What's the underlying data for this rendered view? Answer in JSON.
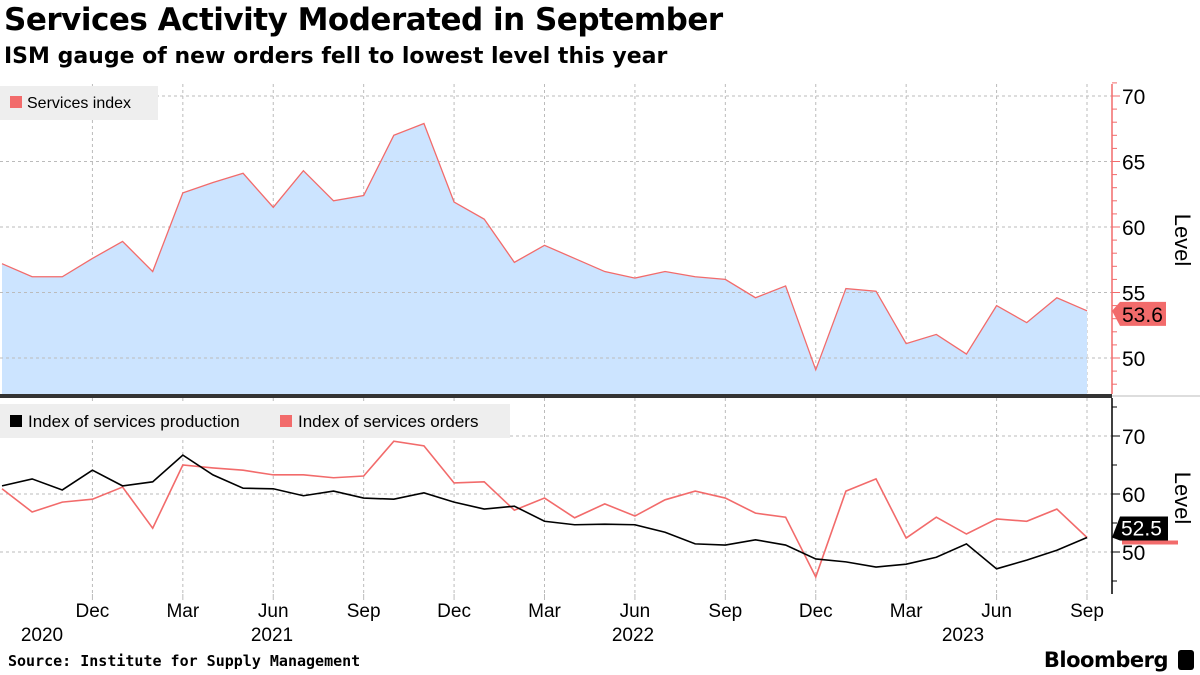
{
  "title": "Services Activity Moderated in September",
  "subtitle": "ISM gauge of new orders fell to lowest level this year",
  "source": "Source: Institute for Supply Management",
  "brand": "Bloomberg",
  "colors": {
    "area_fill": "#cce4ff",
    "red": "#f26b6b",
    "black": "#000000",
    "grid": "#bbbbbb"
  },
  "chart_data": [
    {
      "type": "area",
      "ylabel": "Level",
      "ylim": [
        47,
        71
      ],
      "yticks": [
        50,
        55,
        60,
        65,
        70
      ],
      "grid": true,
      "legend_placement": "top-left",
      "last_value_label": "53.6",
      "x": [
        "2020-09",
        "2020-10",
        "2020-11",
        "2020-12",
        "2021-01",
        "2021-02",
        "2021-03",
        "2021-04",
        "2021-05",
        "2021-06",
        "2021-07",
        "2021-08",
        "2021-09",
        "2021-10",
        "2021-11",
        "2021-12",
        "2022-01",
        "2022-02",
        "2022-03",
        "2022-04",
        "2022-05",
        "2022-06",
        "2022-07",
        "2022-08",
        "2022-09",
        "2022-10",
        "2022-11",
        "2022-12",
        "2023-01",
        "2023-02",
        "2023-03",
        "2023-04",
        "2023-05",
        "2023-06",
        "2023-07",
        "2023-08",
        "2023-09"
      ],
      "series": [
        {
          "name": "Services index",
          "color": "#f26b6b",
          "values": [
            57.2,
            56.2,
            56.2,
            57.6,
            58.9,
            56.6,
            62.6,
            63.4,
            64.1,
            61.5,
            64.3,
            62.0,
            62.4,
            67.0,
            67.9,
            61.9,
            60.6,
            57.3,
            58.6,
            57.6,
            56.6,
            56.1,
            56.6,
            56.2,
            56.0,
            54.6,
            55.5,
            49.1,
            55.3,
            55.1,
            51.1,
            51.8,
            50.3,
            54.0,
            52.7,
            54.6,
            53.6
          ]
        }
      ]
    },
    {
      "type": "line",
      "ylabel": "Level",
      "ylim": [
        43,
        73
      ],
      "yticks": [
        50,
        60,
        70
      ],
      "grid": true,
      "legend_placement": "top-left",
      "last_value_label": "52.5",
      "x_tick_labels": [
        "Dec",
        "Mar",
        "Jun",
        "Sep",
        "Dec",
        "Mar",
        "Jun",
        "Sep",
        "Dec",
        "Mar",
        "Jun",
        "Sep"
      ],
      "x_year_labels": [
        "2020",
        "2021",
        "2022",
        "2023"
      ],
      "series": [
        {
          "name": "Index of services production",
          "color": "#000000",
          "values": [
            61.4,
            62.6,
            60.7,
            64.1,
            61.4,
            62.1,
            66.7,
            63.3,
            61.0,
            60.9,
            59.7,
            60.5,
            59.3,
            59.1,
            60.2,
            58.6,
            57.4,
            57.9,
            55.3,
            54.7,
            54.8,
            54.7,
            53.4,
            51.4,
            51.2,
            52.1,
            51.2,
            48.8,
            48.3,
            47.4,
            47.9,
            49.1,
            51.4,
            47.1,
            48.6,
            50.3,
            52.5
          ]
        },
        {
          "name": "Index of services orders",
          "color": "#f26b6b",
          "values": [
            60.9,
            56.9,
            58.6,
            59.1,
            61.2,
            54.1,
            65.0,
            64.5,
            64.1,
            63.3,
            63.3,
            62.8,
            63.1,
            69.1,
            68.3,
            61.9,
            62.1,
            57.2,
            59.3,
            55.9,
            58.3,
            56.2,
            59.0,
            60.5,
            59.3,
            56.7,
            56.0,
            45.7,
            60.5,
            62.6,
            52.4,
            56.0,
            53.1,
            55.7,
            55.3,
            57.4,
            52.5
          ]
        }
      ]
    }
  ]
}
